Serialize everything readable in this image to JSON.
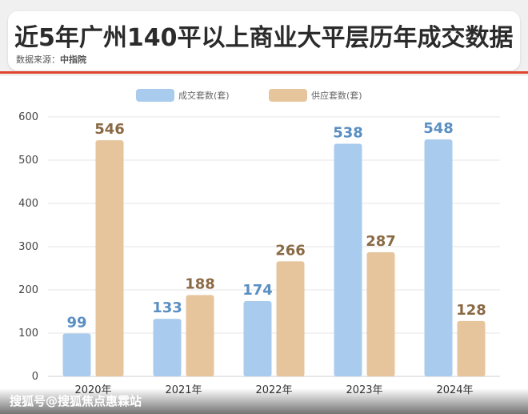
{
  "header": {
    "title": "近5年广州140平以上商业大平层历年成交数据",
    "source_label": "数据来源：",
    "source_value": "中指院"
  },
  "watermark": "搜狐号@搜狐焦点惠霖站",
  "colors": {
    "series_1": "#a9cbee",
    "series_1_label": "#5a8fc3",
    "series_2": "#e6c49c",
    "series_2_label": "#8a6a44",
    "accent": "#e0442f"
  },
  "chart_data": {
    "type": "bar",
    "categories": [
      "2020年",
      "2021年",
      "2022年",
      "2023年",
      "2024年"
    ],
    "series": [
      {
        "name": "成交套数(套)",
        "values": [
          99,
          133,
          174,
          538,
          548
        ]
      },
      {
        "name": "供应套数(套)",
        "values": [
          546,
          188,
          266,
          287,
          128
        ]
      }
    ],
    "ylim": [
      0,
      600
    ],
    "yticks": [
      0,
      100,
      200,
      300,
      400,
      500,
      600
    ],
    "grid": true,
    "legend": "top-center",
    "data_labels": true
  }
}
